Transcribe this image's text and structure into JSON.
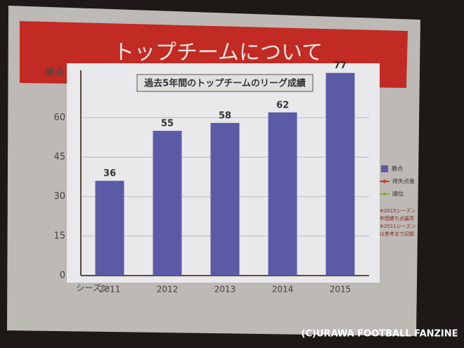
{
  "slide_title": "トップチームについて",
  "watermark": "(C)URAWA FOOTBALL FANZINE",
  "chart_data": {
    "type": "bar",
    "title": "過去5年間のトップチームのリーグ成績",
    "y_label": "勝点",
    "x_label": "シーズン",
    "categories": [
      "2011",
      "2012",
      "2013",
      "2014",
      "2015"
    ],
    "series": [
      {
        "name": "勝点",
        "color": "#5b5aa6",
        "values": [
          36,
          55,
          58,
          62,
          77
        ]
      }
    ],
    "legend_extra": [
      {
        "name": "得失点差",
        "color": "#d03a2c"
      },
      {
        "name": "順位",
        "color": "#8aac3a"
      }
    ],
    "notes": [
      "※2015シーズン",
      "年間勝ち点最高",
      "※2011シーズン",
      "は参考まで記録"
    ],
    "ylim": [
      0,
      78
    ],
    "yticks": [
      0,
      15,
      30,
      45,
      60
    ],
    "grid": true
  }
}
